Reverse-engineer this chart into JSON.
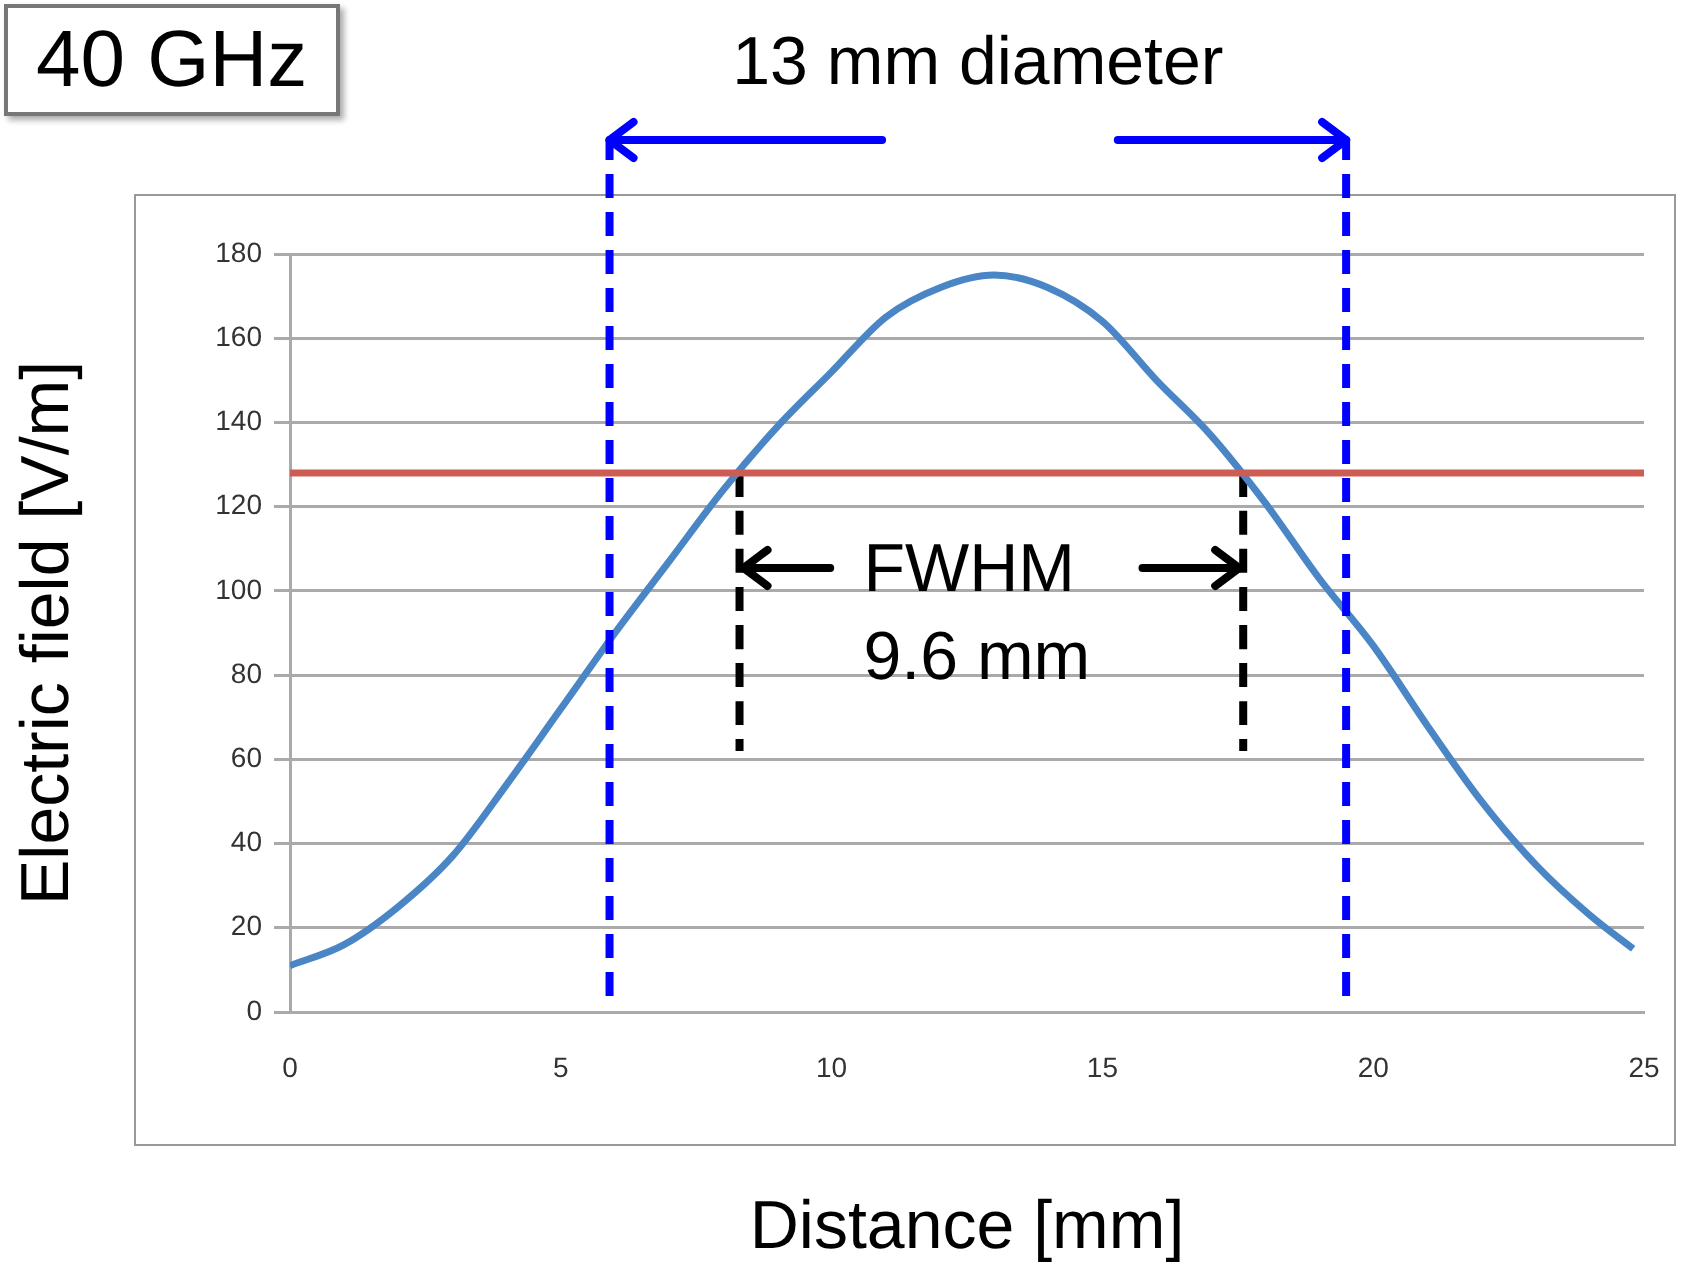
{
  "chart_data": {
    "type": "line",
    "title": "40 GHz",
    "xlabel": "Distance [mm]",
    "ylabel": "Electric field [V/m]",
    "xlim": [
      0,
      25
    ],
    "xticks": [
      0,
      5,
      10,
      15,
      20,
      25
    ],
    "ylim": [
      0,
      180
    ],
    "yticks": [
      0,
      20,
      40,
      60,
      80,
      100,
      120,
      140,
      160,
      180
    ],
    "grid": "y",
    "legend": false,
    "marker": "none",
    "series": [
      {
        "color": "#4a86c5",
        "line_style": "solid",
        "x": [
          0,
          1,
          2,
          3,
          4,
          5,
          6,
          7,
          8,
          9,
          10,
          11,
          12,
          13,
          14,
          15,
          16,
          17,
          18,
          19,
          20,
          21,
          22,
          23,
          24,
          24.8
        ],
        "values": [
          11,
          16,
          25,
          37,
          54,
          72,
          90,
          107,
          124,
          139,
          152,
          165,
          172,
          175,
          172,
          164,
          150,
          137,
          121,
          103,
          87,
          68,
          50,
          35,
          23,
          15
        ]
      },
      {
        "color": "#000000",
        "line_style": "dashed",
        "x": [
          8.3,
          8.3
        ],
        "values": [
          128,
          62
        ]
      },
      {
        "color": "#000000",
        "line_style": "dashed",
        "x": [
          17.6,
          17.6
        ],
        "values": [
          128,
          62
        ]
      }
    ],
    "ref_lines": [
      {
        "axis": "y",
        "value": 128,
        "color": "#cd5c55",
        "line_style": "solid"
      },
      {
        "axis": "x",
        "value": 5.9,
        "color": "#0000ff",
        "line_style": "dashed"
      },
      {
        "axis": "x",
        "value": 19.5,
        "color": "#0000ff",
        "line_style": "dashed"
      }
    ],
    "annotations": [
      "13 mm diameter",
      {
        "text": "FWHM\n9.6 mm",
        "x": 8.3,
        "y": 100
      }
    ]
  }
}
